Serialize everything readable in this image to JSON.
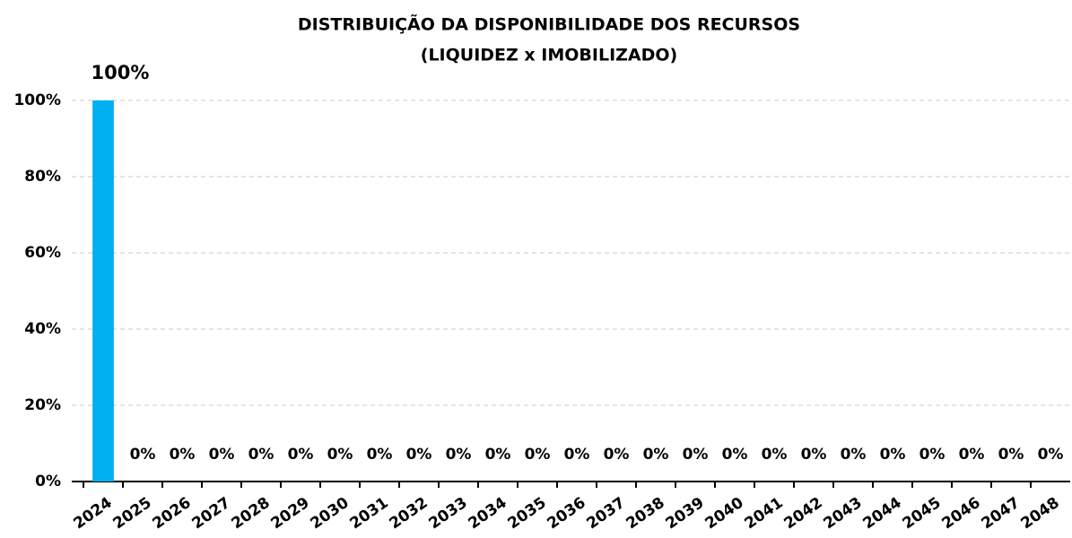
{
  "chart_data": {
    "type": "bar",
    "title": [
      "DISTRIBUIÇÃO DA DISPONIBILIDADE DOS RECURSOS",
      "(LIQUIDEZ x IMOBILIZADO)"
    ],
    "categories": [
      "2024",
      "2025",
      "2026",
      "2027",
      "2028",
      "2029",
      "2030",
      "2031",
      "2032",
      "2033",
      "2034",
      "2035",
      "2036",
      "2037",
      "2038",
      "2039",
      "2040",
      "2041",
      "2042",
      "2043",
      "2044",
      "2045",
      "2046",
      "2047",
      "2048"
    ],
    "values": [
      100,
      0,
      0,
      0,
      0,
      0,
      0,
      0,
      0,
      0,
      0,
      0,
      0,
      0,
      0,
      0,
      0,
      0,
      0,
      0,
      0,
      0,
      0,
      0,
      0
    ],
    "value_labels": [
      "100%",
      "0%",
      "0%",
      "0%",
      "0%",
      "0%",
      "0%",
      "0%",
      "0%",
      "0%",
      "0%",
      "0%",
      "0%",
      "0%",
      "0%",
      "0%",
      "0%",
      "0%",
      "0%",
      "0%",
      "0%",
      "0%",
      "0%",
      "0%",
      "0%"
    ],
    "color": "#00b0f0",
    "ylim": [
      0,
      100
    ],
    "yticks": [
      {
        "value": 0,
        "label": "0%"
      },
      {
        "value": 20,
        "label": "20%"
      },
      {
        "value": 40,
        "label": "40%"
      },
      {
        "value": 60,
        "label": "60%"
      },
      {
        "value": 80,
        "label": "80%"
      },
      {
        "value": 100,
        "label": "100%"
      }
    ],
    "grid": true
  }
}
